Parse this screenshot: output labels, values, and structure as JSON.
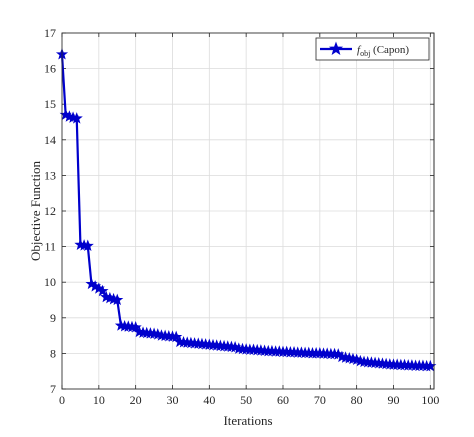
{
  "chart_data": {
    "type": "line",
    "xlabel": "Iterations",
    "ylabel": "Objective Function",
    "xlim": [
      0,
      101
    ],
    "ylim": [
      7,
      17
    ],
    "xticks": [
      0,
      10,
      20,
      30,
      40,
      50,
      60,
      70,
      80,
      90,
      100
    ],
    "yticks": [
      7,
      8,
      9,
      10,
      11,
      12,
      13,
      14,
      15,
      16,
      17
    ],
    "grid": true,
    "legend_position": "top-right",
    "series": [
      {
        "name": "f",
        "name_sub": "obj",
        "name_suffix": " (Capon)",
        "color": "#0000cc",
        "marker": "star",
        "x": [
          0,
          1,
          2,
          3,
          4,
          5,
          6,
          7,
          8,
          9,
          10,
          11,
          12,
          13,
          14,
          15,
          16,
          17,
          18,
          19,
          20,
          21,
          22,
          23,
          24,
          25,
          26,
          27,
          28,
          29,
          30,
          31,
          32,
          33,
          34,
          35,
          36,
          37,
          38,
          39,
          40,
          41,
          42,
          43,
          44,
          45,
          46,
          47,
          48,
          49,
          50,
          51,
          52,
          53,
          54,
          55,
          56,
          57,
          58,
          59,
          60,
          61,
          62,
          63,
          64,
          65,
          66,
          67,
          68,
          69,
          70,
          71,
          72,
          73,
          74,
          75,
          76,
          77,
          78,
          79,
          80,
          81,
          82,
          83,
          84,
          85,
          86,
          87,
          88,
          89,
          90,
          91,
          92,
          93,
          94,
          95,
          96,
          97,
          98,
          99,
          100
        ],
        "y": [
          16.4,
          14.7,
          14.65,
          14.62,
          14.6,
          11.05,
          11.03,
          11.02,
          9.95,
          9.88,
          9.82,
          9.75,
          9.58,
          9.55,
          9.52,
          9.5,
          8.78,
          8.76,
          8.75,
          8.74,
          8.73,
          8.6,
          8.58,
          8.57,
          8.56,
          8.55,
          8.53,
          8.5,
          8.49,
          8.48,
          8.47,
          8.46,
          8.32,
          8.31,
          8.3,
          8.29,
          8.28,
          8.27,
          8.26,
          8.25,
          8.24,
          8.23,
          8.22,
          8.21,
          8.2,
          8.19,
          8.18,
          8.17,
          8.13,
          8.12,
          8.11,
          8.1,
          8.1,
          8.09,
          8.08,
          8.07,
          8.06,
          8.06,
          8.05,
          8.05,
          8.04,
          8.04,
          8.03,
          8.03,
          8.02,
          8.02,
          8.01,
          8.01,
          8.0,
          8.0,
          8.0,
          7.99,
          7.99,
          7.98,
          7.98,
          7.97,
          7.9,
          7.88,
          7.86,
          7.84,
          7.82,
          7.78,
          7.76,
          7.75,
          7.74,
          7.73,
          7.72,
          7.71,
          7.7,
          7.69,
          7.68,
          7.68,
          7.67,
          7.67,
          7.66,
          7.66,
          7.65,
          7.65,
          7.65,
          7.64,
          7.64
        ]
      }
    ]
  }
}
